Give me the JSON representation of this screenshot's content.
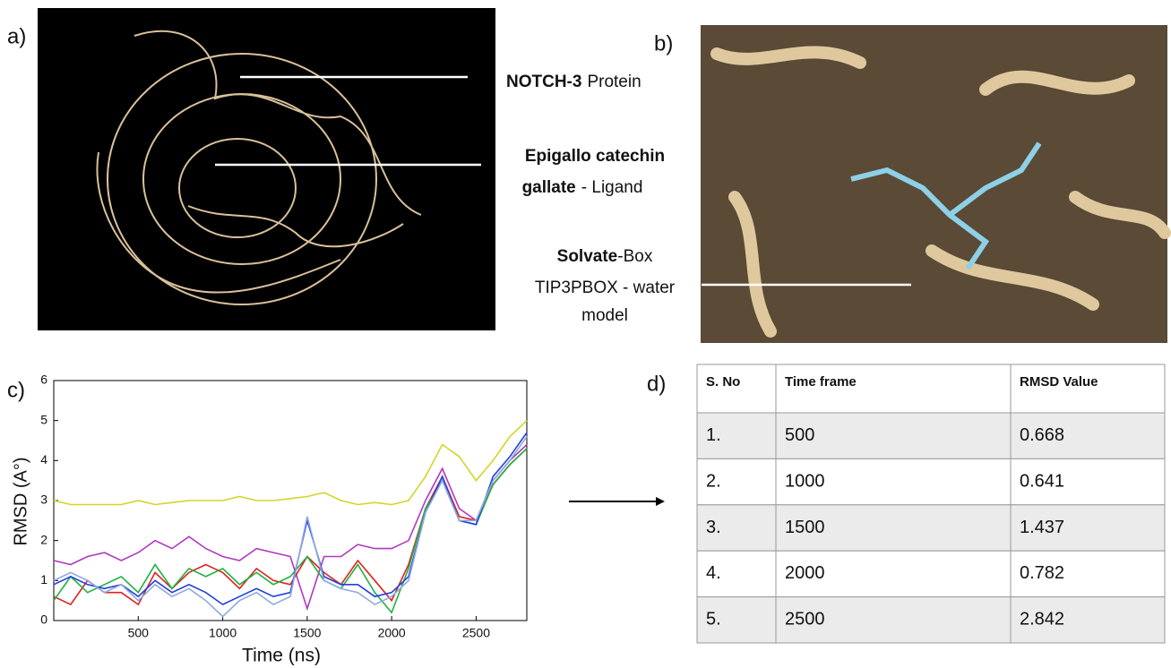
{
  "panel_labels": [
    "a)",
    "b)",
    "c)",
    "d)"
  ],
  "annotations": {
    "protein": {
      "bold": "NOTCH-3",
      "text": "Protein"
    },
    "ligand": {
      "line1": "Epigallo catechin",
      "bold": "gallate",
      "text": "- Ligand"
    },
    "solvate": {
      "bold": "Solvate",
      "text": "-Box",
      "line2": "TIP3PBOX - water",
      "line3": "model"
    }
  },
  "chart_data": {
    "type": "line",
    "x_label": "Time (ns)",
    "y_label": "RMSD (A°)",
    "x": [
      0,
      100,
      200,
      300,
      400,
      500,
      600,
      700,
      800,
      900,
      1000,
      1100,
      1200,
      1300,
      1400,
      1500,
      1600,
      1700,
      1800,
      1900,
      2000,
      2100,
      2200,
      2300,
      2400,
      2500,
      2600,
      2700,
      2800
    ],
    "series": [
      {
        "color": "#d4d42a",
        "values": [
          3.0,
          2.9,
          2.9,
          2.9,
          2.9,
          3.0,
          2.9,
          2.95,
          3.0,
          3.0,
          3.0,
          3.1,
          3.0,
          3.0,
          3.05,
          3.1,
          3.2,
          3.0,
          2.9,
          2.95,
          2.9,
          3.0,
          3.6,
          4.4,
          4.1,
          3.5,
          4.0,
          4.6,
          5.0
        ]
      },
      {
        "color": "#b038c0",
        "values": [
          1.5,
          1.4,
          1.6,
          1.7,
          1.5,
          1.7,
          2.0,
          1.8,
          2.1,
          1.8,
          1.6,
          1.5,
          1.8,
          1.7,
          1.6,
          0.3,
          1.6,
          1.6,
          1.9,
          1.8,
          1.8,
          2.0,
          3.0,
          3.8,
          2.8,
          2.5,
          3.5,
          4.0,
          4.4
        ]
      },
      {
        "color": "#e02020",
        "values": [
          0.6,
          0.4,
          1.0,
          0.7,
          0.7,
          0.4,
          1.2,
          0.8,
          1.2,
          1.4,
          1.2,
          0.8,
          1.3,
          1.0,
          0.9,
          1.6,
          1.2,
          0.9,
          1.5,
          1.0,
          0.5,
          1.4,
          2.8,
          3.6,
          2.6,
          2.5,
          3.4,
          3.9,
          4.3
        ]
      },
      {
        "color": "#20b040",
        "values": [
          0.5,
          1.1,
          0.7,
          0.9,
          1.1,
          0.7,
          1.4,
          0.8,
          1.3,
          1.1,
          1.3,
          0.9,
          1.2,
          0.9,
          1.1,
          1.6,
          1.0,
          0.8,
          1.4,
          0.7,
          0.2,
          1.3,
          2.8,
          3.5,
          2.5,
          2.4,
          3.4,
          3.9,
          4.3
        ]
      },
      {
        "color": "#2040e0",
        "values": [
          0.9,
          1.1,
          0.9,
          0.8,
          0.9,
          0.6,
          1.0,
          0.7,
          0.9,
          0.7,
          0.4,
          0.6,
          0.8,
          0.6,
          0.7,
          2.5,
          1.1,
          0.9,
          0.9,
          0.6,
          0.7,
          1.1,
          2.7,
          3.6,
          2.5,
          2.4,
          3.6,
          4.1,
          4.7
        ]
      },
      {
        "color": "#90a8e0",
        "values": [
          1.0,
          1.2,
          1.0,
          0.7,
          0.9,
          0.5,
          0.9,
          0.6,
          0.8,
          0.5,
          0.1,
          0.5,
          0.7,
          0.4,
          0.6,
          2.6,
          1.0,
          0.8,
          0.7,
          0.4,
          0.6,
          1.0,
          2.7,
          3.5,
          2.5,
          2.5,
          3.5,
          4.0,
          4.6
        ]
      }
    ],
    "xlim": [
      0,
      2800
    ],
    "xticks": [
      500,
      1000,
      1500,
      2000,
      2500
    ],
    "ylim": [
      0,
      6
    ],
    "yticks": [
      0,
      1,
      2,
      3,
      4,
      5,
      6
    ]
  },
  "table": {
    "header": [
      "S. No",
      "Time frame",
      "RMSD Value"
    ],
    "rows": [
      [
        "1.",
        "500",
        "0.668"
      ],
      [
        "2.",
        "1000",
        "0.641"
      ],
      [
        "3.",
        "1500",
        "1.437"
      ],
      [
        "4.",
        "2000",
        "0.782"
      ],
      [
        "5.",
        "2500",
        "2.842"
      ]
    ]
  }
}
